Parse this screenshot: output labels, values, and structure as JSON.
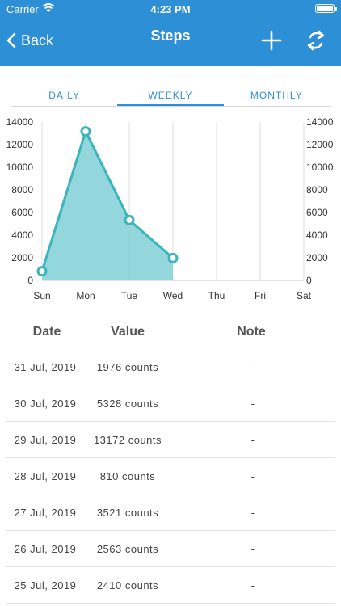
{
  "status_bar": {
    "carrier": "Carrier",
    "time": "4:23 PM"
  },
  "nav": {
    "back_label": "Back",
    "title": "Steps",
    "add_icon": "plus-icon",
    "refresh_icon": "refresh-icon"
  },
  "tabs": [
    {
      "label": "DAILY",
      "active": false
    },
    {
      "label": "WEEKLY",
      "active": true
    },
    {
      "label": "MONTHLY",
      "active": false
    }
  ],
  "colors": {
    "nav_bg": "#2d8fd5",
    "series_fill": "#8dd4d9",
    "series_line": "#3bb5bd"
  },
  "chart_data": {
    "type": "area",
    "categories": [
      "Sun",
      "Mon",
      "Tue",
      "Wed",
      "Thu",
      "Fri",
      "Sat"
    ],
    "series": [
      {
        "values": [
          810,
          13172,
          5328,
          1976,
          null,
          null,
          null
        ]
      }
    ],
    "ylim": [
      0,
      14000
    ],
    "yticks": [
      0,
      2000,
      4000,
      6000,
      8000,
      10000,
      12000,
      14000
    ],
    "y_axis": "left-and-right",
    "grid": "vertical"
  },
  "table": {
    "headers": {
      "date": "Date",
      "value": "Value",
      "note": "Note"
    },
    "rows": [
      {
        "date": "31 Jul, 2019",
        "value": "1976 counts",
        "note": "-"
      },
      {
        "date": "30 Jul, 2019",
        "value": "5328 counts",
        "note": "-"
      },
      {
        "date": "29 Jul, 2019",
        "value": "13172 counts",
        "note": "-"
      },
      {
        "date": "28 Jul, 2019",
        "value": "810 counts",
        "note": "-"
      },
      {
        "date": "27 Jul, 2019",
        "value": "3521 counts",
        "note": "-"
      },
      {
        "date": "26 Jul, 2019",
        "value": "2563 counts",
        "note": "-"
      },
      {
        "date": "25 Jul, 2019",
        "value": "2410 counts",
        "note": "-"
      }
    ]
  }
}
